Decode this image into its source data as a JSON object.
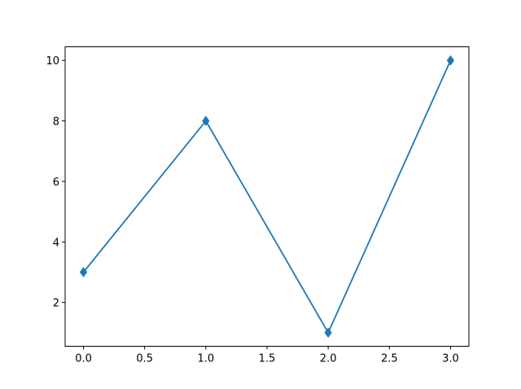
{
  "chart_data": {
    "type": "line",
    "title": "",
    "xlabel": "",
    "ylabel": "",
    "x": [
      0,
      1,
      2,
      3
    ],
    "series": [
      {
        "values": [
          3,
          8,
          1,
          10
        ],
        "color": "#1f77b4",
        "marker": "thin-diamond"
      }
    ],
    "xlim": [
      -0.15,
      3.15
    ],
    "ylim": [
      0.55,
      10.45
    ],
    "xticks": [
      "0.0",
      "0.5",
      "1.0",
      "1.5",
      "2.0",
      "2.5",
      "3.0"
    ],
    "yticks": [
      "2",
      "4",
      "6",
      "8",
      "10"
    ],
    "grid": false,
    "legend": "none"
  }
}
